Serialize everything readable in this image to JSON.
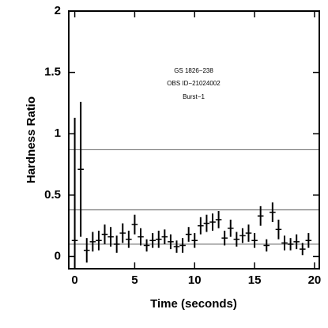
{
  "chart_data": {
    "type": "errorbar",
    "xlabel": "Time (seconds)",
    "ylabel": "Hardness Ratio",
    "annotations": [
      "GS 1826−238",
      "OBS ID−21024002",
      "Burst−1"
    ],
    "xlim": [
      -0.5,
      20.4
    ],
    "ylim": [
      -0.1,
      2
    ],
    "xticks": [
      0,
      5,
      10,
      15,
      20
    ],
    "yticks": [
      0,
      0.5,
      1,
      1.5,
      2
    ],
    "hlines": [
      0.87,
      0.38,
      0.1
    ],
    "hline_color": "#777777",
    "series": [
      {
        "color": "#000000",
        "xerr": 0.25,
        "x": [
          0,
          0.5,
          1,
          1.5,
          2,
          2.5,
          3,
          3.5,
          4,
          4.5,
          5,
          5.5,
          6,
          6.5,
          7,
          7.5,
          8,
          8.5,
          9,
          9.5,
          10,
          10.5,
          11,
          11.5,
          12,
          12.5,
          13,
          13.5,
          14,
          14.5,
          15,
          15.5,
          16,
          16.5,
          17,
          17.5,
          18,
          18.5,
          19,
          19.5
        ],
        "values": [
          0.13,
          0.71,
          0.05,
          0.12,
          0.13,
          0.18,
          0.16,
          0.1,
          0.19,
          0.14,
          0.26,
          0.16,
          0.09,
          0.13,
          0.14,
          0.16,
          0.12,
          0.08,
          0.09,
          0.18,
          0.13,
          0.25,
          0.27,
          0.28,
          0.3,
          0.15,
          0.23,
          0.14,
          0.17,
          0.19,
          0.13,
          0.33,
          0.09,
          0.36,
          0.22,
          0.11,
          0.1,
          0.12,
          0.06,
          0.13
        ],
        "yerr": [
          1.0,
          0.55,
          0.1,
          0.08,
          0.08,
          0.08,
          0.08,
          0.07,
          0.08,
          0.07,
          0.08,
          0.07,
          0.05,
          0.06,
          0.07,
          0.06,
          0.06,
          0.05,
          0.06,
          0.06,
          0.06,
          0.07,
          0.07,
          0.07,
          0.07,
          0.06,
          0.07,
          0.06,
          0.06,
          0.07,
          0.06,
          0.08,
          0.05,
          0.08,
          0.08,
          0.06,
          0.05,
          0.06,
          0.05,
          0.06
        ]
      }
    ]
  }
}
